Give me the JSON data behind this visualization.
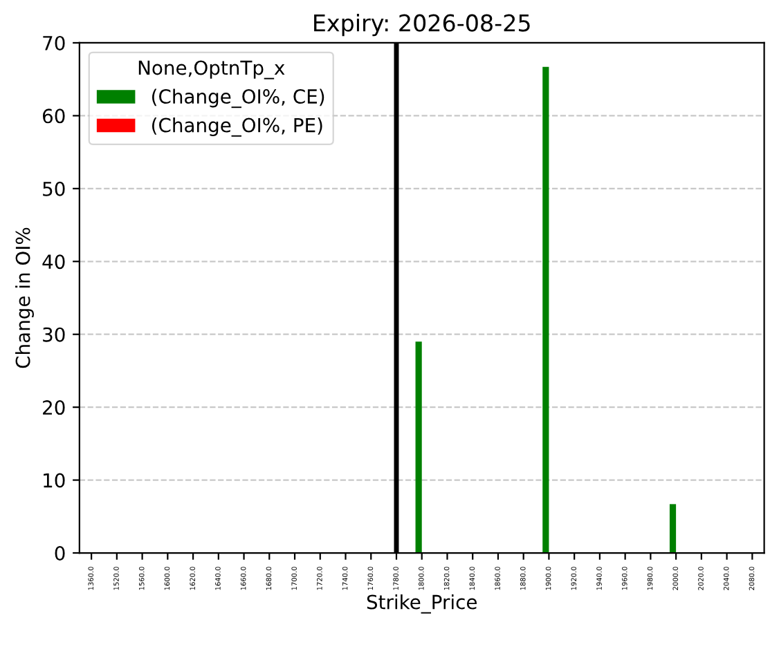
{
  "chart_data": {
    "type": "bar",
    "title": "Expiry: 2026-08-25",
    "xlabel": "Strike_Price",
    "ylabel": "Change in OI%",
    "legend_title": "None,OptnTp_x",
    "categories": [
      "1360.0",
      "1520.0",
      "1560.0",
      "1600.0",
      "1620.0",
      "1640.0",
      "1660.0",
      "1680.0",
      "1700.0",
      "1720.0",
      "1740.0",
      "1760.0",
      "1780.0",
      "1800.0",
      "1820.0",
      "1840.0",
      "1860.0",
      "1880.0",
      "1900.0",
      "1920.0",
      "1940.0",
      "1960.0",
      "1980.0",
      "2000.0",
      "2020.0",
      "2040.0",
      "2080.0"
    ],
    "series": [
      {
        "name": "(Change_OI%, CE)",
        "color": "#008000",
        "values": [
          null,
          null,
          null,
          null,
          null,
          null,
          null,
          null,
          null,
          null,
          null,
          null,
          null,
          29,
          null,
          null,
          null,
          null,
          66.7,
          null,
          null,
          null,
          null,
          6.7,
          null,
          null,
          null
        ]
      },
      {
        "name": "(Change_OI%, PE)",
        "color": "#ff0000",
        "values": [
          null,
          null,
          null,
          null,
          null,
          null,
          null,
          null,
          null,
          null,
          null,
          null,
          null,
          null,
          null,
          null,
          null,
          null,
          null,
          null,
          null,
          null,
          null,
          null,
          null,
          null,
          null
        ]
      }
    ],
    "ylim": [
      0,
      70
    ],
    "yticks": [
      0,
      10,
      20,
      30,
      40,
      50,
      60,
      70
    ],
    "grid": "y",
    "legend": "top left",
    "ref_lines": [
      {
        "axis": "x",
        "value": "1780.0",
        "color": "#000000"
      }
    ]
  }
}
